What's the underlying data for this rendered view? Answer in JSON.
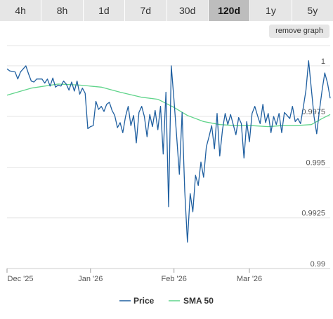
{
  "tabs": [
    {
      "label": "4h",
      "active": false
    },
    {
      "label": "8h",
      "active": false
    },
    {
      "label": "1d",
      "active": false
    },
    {
      "label": "7d",
      "active": false
    },
    {
      "label": "30d",
      "active": false
    },
    {
      "label": "120d",
      "active": true
    },
    {
      "label": "1y",
      "active": false
    },
    {
      "label": "5y",
      "active": false
    }
  ],
  "remove_graph_label": "remove graph",
  "chart_data": {
    "type": "line",
    "x_start": "2025-12-01",
    "x_end": "2026-03-31",
    "x_ticks": [
      {
        "date": "2025-12-01",
        "label": "Dec '25"
      },
      {
        "date": "2026-01-01",
        "label": "Jan '26"
      },
      {
        "date": "2026-02-01",
        "label": "Feb '26"
      },
      {
        "date": "2026-03-01",
        "label": "Mar '26"
      }
    ],
    "ylim": [
      0.99,
      1.001
    ],
    "y_ticks": [
      {
        "value": 1,
        "label": "1"
      },
      {
        "value": 0.9975,
        "label": "0.9975"
      },
      {
        "value": 0.995,
        "label": "0.995"
      },
      {
        "value": 0.9925,
        "label": "0.9925"
      },
      {
        "value": 0.99,
        "label": "0.99"
      }
    ],
    "grid": true,
    "legend_position": "bottom",
    "series": [
      {
        "name": "Price",
        "color": "#1f5fa0",
        "points": [
          [
            "2025-12-01",
            0.99985
          ],
          [
            "2025-12-02",
            0.99975
          ],
          [
            "2025-12-04",
            0.9997
          ],
          [
            "2025-12-05",
            0.99935
          ],
          [
            "2025-12-06",
            0.9997
          ],
          [
            "2025-12-08",
            1.0
          ],
          [
            "2025-12-09",
            0.9996
          ],
          [
            "2025-12-10",
            0.99925
          ],
          [
            "2025-12-11",
            0.9992
          ],
          [
            "2025-12-12",
            0.99935
          ],
          [
            "2025-12-14",
            0.99935
          ],
          [
            "2025-12-15",
            0.99915
          ],
          [
            "2025-12-16",
            0.99935
          ],
          [
            "2025-12-17",
            0.999
          ],
          [
            "2025-12-18",
            0.9994
          ],
          [
            "2025-12-19",
            0.99895
          ],
          [
            "2025-12-20",
            0.99905
          ],
          [
            "2025-12-21",
            0.999
          ],
          [
            "2025-12-22",
            0.99925
          ],
          [
            "2025-12-23",
            0.9991
          ],
          [
            "2025-12-24",
            0.9988
          ],
          [
            "2025-12-25",
            0.9992
          ],
          [
            "2025-12-26",
            0.99875
          ],
          [
            "2025-12-27",
            0.99925
          ],
          [
            "2025-12-28",
            0.9986
          ],
          [
            "2025-12-29",
            0.9989
          ],
          [
            "2025-12-30",
            0.99865
          ],
          [
            "2025-12-31",
            0.9969
          ],
          [
            "2026-01-01",
            0.997
          ],
          [
            "2026-01-02",
            0.99705
          ],
          [
            "2026-01-03",
            0.99825
          ],
          [
            "2026-01-04",
            0.99785
          ],
          [
            "2026-01-05",
            0.998
          ],
          [
            "2026-01-06",
            0.99775
          ],
          [
            "2026-01-07",
            0.9981
          ],
          [
            "2026-01-08",
            0.9982
          ],
          [
            "2026-01-09",
            0.9978
          ],
          [
            "2026-01-10",
            0.99755
          ],
          [
            "2026-01-11",
            0.99695
          ],
          [
            "2026-01-12",
            0.9972
          ],
          [
            "2026-01-13",
            0.9967
          ],
          [
            "2026-01-14",
            0.9975
          ],
          [
            "2026-01-15",
            0.998
          ],
          [
            "2026-01-16",
            0.99705
          ],
          [
            "2026-01-17",
            0.99755
          ],
          [
            "2026-01-18",
            0.9962
          ],
          [
            "2026-01-19",
            0.9977
          ],
          [
            "2026-01-20",
            0.998
          ],
          [
            "2026-01-21",
            0.9975
          ],
          [
            "2026-01-22",
            0.9965
          ],
          [
            "2026-01-23",
            0.9976
          ],
          [
            "2026-01-24",
            0.997
          ],
          [
            "2026-01-25",
            0.9978
          ],
          [
            "2026-01-26",
            0.99685
          ],
          [
            "2026-01-27",
            0.998
          ],
          [
            "2026-01-28",
            0.99565
          ],
          [
            "2026-01-29",
            0.9987
          ],
          [
            "2026-01-30",
            0.99305
          ],
          [
            "2026-01-31",
            1.0
          ],
          [
            "2026-02-01",
            0.9983
          ],
          [
            "2026-02-02",
            0.9965
          ],
          [
            "2026-02-03",
            0.99465
          ],
          [
            "2026-02-04",
            0.9977
          ],
          [
            "2026-02-05",
            0.9938
          ],
          [
            "2026-02-06",
            0.9913
          ],
          [
            "2026-02-07",
            0.9937
          ],
          [
            "2026-02-08",
            0.9928
          ],
          [
            "2026-02-09",
            0.9946
          ],
          [
            "2026-02-10",
            0.9941
          ],
          [
            "2026-02-11",
            0.99525
          ],
          [
            "2026-02-12",
            0.9945
          ],
          [
            "2026-02-13",
            0.996
          ],
          [
            "2026-02-14",
            0.9965
          ],
          [
            "2026-02-15",
            0.99705
          ],
          [
            "2026-02-16",
            0.9959
          ],
          [
            "2026-02-17",
            0.99765
          ],
          [
            "2026-02-18",
            0.99555
          ],
          [
            "2026-02-19",
            0.99685
          ],
          [
            "2026-02-20",
            0.99765
          ],
          [
            "2026-02-21",
            0.9971
          ],
          [
            "2026-02-22",
            0.9976
          ],
          [
            "2026-02-23",
            0.9971
          ],
          [
            "2026-02-24",
            0.9966
          ],
          [
            "2026-02-25",
            0.99745
          ],
          [
            "2026-02-26",
            0.99715
          ],
          [
            "2026-02-27",
            0.99545
          ],
          [
            "2026-02-28",
            0.99725
          ],
          [
            "2026-03-01",
            0.99625
          ],
          [
            "2026-03-02",
            0.99765
          ],
          [
            "2026-03-03",
            0.998
          ],
          [
            "2026-03-04",
            0.99755
          ],
          [
            "2026-03-05",
            0.99715
          ],
          [
            "2026-03-06",
            0.9981
          ],
          [
            "2026-03-07",
            0.9972
          ],
          [
            "2026-03-08",
            0.99765
          ],
          [
            "2026-03-09",
            0.9967
          ],
          [
            "2026-03-10",
            0.9975
          ],
          [
            "2026-03-11",
            0.9971
          ],
          [
            "2026-03-12",
            0.99765
          ],
          [
            "2026-03-13",
            0.9967
          ],
          [
            "2026-03-14",
            0.9977
          ],
          [
            "2026-03-15",
            0.99755
          ],
          [
            "2026-03-16",
            0.9974
          ],
          [
            "2026-03-17",
            0.998
          ],
          [
            "2026-03-18",
            0.99725
          ],
          [
            "2026-03-19",
            0.9974
          ],
          [
            "2026-03-20",
            0.99715
          ],
          [
            "2026-03-21",
            0.99795
          ],
          [
            "2026-03-22",
            0.9988
          ],
          [
            "2026-03-23",
            1.00025
          ],
          [
            "2026-03-24",
            0.99885
          ],
          [
            "2026-03-25",
            0.9975
          ],
          [
            "2026-03-26",
            0.99665
          ],
          [
            "2026-03-27",
            0.9978
          ],
          [
            "2026-03-28",
            0.9988
          ],
          [
            "2026-03-29",
            0.99965
          ],
          [
            "2026-03-30",
            0.99915
          ],
          [
            "2026-03-31",
            0.9984
          ]
        ]
      },
      {
        "name": "SMA 50",
        "color": "#5fd48a",
        "points": [
          [
            "2025-12-01",
            0.99855
          ],
          [
            "2025-12-10",
            0.9989
          ],
          [
            "2025-12-20",
            0.9991
          ],
          [
            "2025-12-28",
            0.99905
          ],
          [
            "2026-01-05",
            0.99895
          ],
          [
            "2026-01-12",
            0.9987
          ],
          [
            "2026-01-20",
            0.99845
          ],
          [
            "2026-01-26",
            0.99835
          ],
          [
            "2026-02-01",
            0.99795
          ],
          [
            "2026-02-06",
            0.99755
          ],
          [
            "2026-02-12",
            0.99725
          ],
          [
            "2026-02-18",
            0.9971
          ],
          [
            "2026-02-24",
            0.99705
          ],
          [
            "2026-03-02",
            0.99705
          ],
          [
            "2026-03-08",
            0.997
          ],
          [
            "2026-03-13",
            0.99705
          ],
          [
            "2026-03-18",
            0.99705
          ],
          [
            "2026-03-24",
            0.9971
          ],
          [
            "2026-03-28",
            0.9974
          ],
          [
            "2026-03-31",
            0.9976
          ]
        ]
      }
    ]
  }
}
